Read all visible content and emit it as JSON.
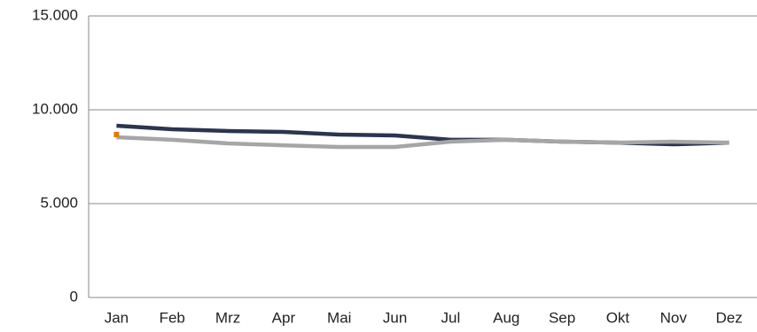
{
  "chart_data": {
    "type": "line",
    "categories": [
      "Jan",
      "Feb",
      "Mrz",
      "Apr",
      "Mai",
      "Jun",
      "Jul",
      "Aug",
      "Sep",
      "Okt",
      "Nov",
      "Dez"
    ],
    "series": [
      {
        "color": "#2a3550",
        "values": [
          9150,
          8960,
          8870,
          8820,
          8680,
          8630,
          8400,
          8400,
          8300,
          8250,
          8160,
          8250
        ]
      },
      {
        "color": "#a6a6a6",
        "values": [
          8540,
          8400,
          8210,
          8110,
          8020,
          8020,
          8300,
          8400,
          8300,
          8250,
          8300,
          8250
        ]
      },
      {
        "color": "#e07b00",
        "marker": "square",
        "values": [
          8680,
          null,
          null,
          null,
          null,
          null,
          null,
          null,
          null,
          null,
          null,
          null
        ]
      }
    ],
    "ylim": [
      0,
      15000
    ],
    "yticks": [
      0,
      {
        "value": 5000,
        "label": "5.000"
      },
      {
        "value": 10000,
        "label": "10.000"
      },
      {
        "value": 15000,
        "label": "15.000"
      }
    ],
    "grid": true
  }
}
